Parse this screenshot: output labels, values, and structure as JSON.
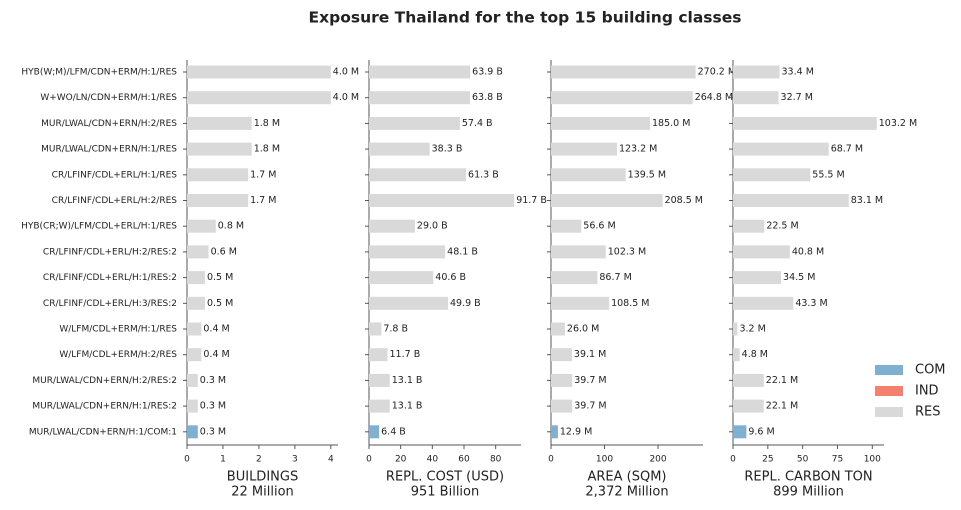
{
  "chart_data": [
    {
      "type": "bar",
      "orientation": "horizontal",
      "title": "Exposure Thailand for the top 15 building classes",
      "legend": "right",
      "categories": [
        "HYB(W;M)/LFM/CDN+ERM/H:1/RES",
        "W+WO/LN/CDN+ERM/H:1/RES",
        "MUR/LWAL/CDN+ERN/H:2/RES",
        "MUR/LWAL/CDN+ERN/H:1/RES",
        "CR/LFINF/CDL+ERL/H:1/RES",
        "CR/LFINF/CDL+ERL/H:2/RES",
        "HYB(CR;W)/LFM/CDL+ERL/H:1/RES",
        "CR/LFINF/CDL+ERL/H:2/RES:2",
        "CR/LFINF/CDL+ERL/H:1/RES:2",
        "CR/LFINF/CDL+ERL/H:3/RES:2",
        "W/LFM/CDL+ERM/H:1/RES",
        "W/LFM/CDL+ERM/H:2/RES",
        "MUR/LWAL/CDN+ERN/H:2/RES:2",
        "MUR/LWAL/CDN+ERN/H:1/RES:2",
        "MUR/LWAL/CDN+ERN/H:1/COM:1"
      ],
      "xlabel": [
        "BUILDINGS",
        "22 Million"
      ],
      "xlim": [
        0,
        4.2
      ],
      "xticks": [
        0,
        1,
        2,
        3,
        4
      ],
      "series": [
        {
          "name": "COM",
          "color": "#7fb0d2",
          "values": [
            null,
            null,
            null,
            null,
            null,
            null,
            null,
            null,
            null,
            null,
            null,
            null,
            null,
            null,
            0.3
          ],
          "value_labels": [
            null,
            null,
            null,
            null,
            null,
            null,
            null,
            null,
            null,
            null,
            null,
            null,
            null,
            null,
            "0.3 M"
          ]
        },
        {
          "name": "IND",
          "color": "#f4806f",
          "values": [
            null,
            null,
            null,
            null,
            null,
            null,
            null,
            null,
            null,
            null,
            null,
            null,
            null,
            null,
            null
          ],
          "value_labels": [
            null,
            null,
            null,
            null,
            null,
            null,
            null,
            null,
            null,
            null,
            null,
            null,
            null,
            null,
            null
          ]
        },
        {
          "name": "RES",
          "color": "#d9d9d9",
          "values": [
            4.0,
            4.0,
            1.8,
            1.8,
            1.7,
            1.7,
            0.8,
            0.6,
            0.5,
            0.5,
            0.4,
            0.4,
            0.3,
            0.3,
            null
          ],
          "value_labels": [
            "4.0 M",
            "4.0 M",
            "1.8 M",
            "1.8 M",
            "1.7 M",
            "1.7 M",
            "0.8 M",
            "0.6 M",
            "0.5 M",
            "0.5 M",
            "0.4 M",
            "0.4 M",
            "0.3 M",
            "0.3 M",
            null
          ]
        }
      ]
    },
    {
      "type": "bar",
      "orientation": "horizontal",
      "xlabel": [
        "REPL. COST (USD)",
        "951 Billion"
      ],
      "xlim": [
        0,
        96
      ],
      "xticks": [
        0,
        20,
        40,
        60,
        80
      ],
      "series": [
        {
          "name": "COM",
          "color": "#7fb0d2",
          "values": [
            null,
            null,
            null,
            null,
            null,
            null,
            null,
            null,
            null,
            null,
            null,
            null,
            null,
            null,
            6.4
          ],
          "value_labels": [
            null,
            null,
            null,
            null,
            null,
            null,
            null,
            null,
            null,
            null,
            null,
            null,
            null,
            null,
            "6.4 B"
          ]
        },
        {
          "name": "IND",
          "color": "#f4806f",
          "values": [
            null,
            null,
            null,
            null,
            null,
            null,
            null,
            null,
            null,
            null,
            null,
            null,
            null,
            null,
            null
          ],
          "value_labels": [
            null,
            null,
            null,
            null,
            null,
            null,
            null,
            null,
            null,
            null,
            null,
            null,
            null,
            null,
            null
          ]
        },
        {
          "name": "RES",
          "color": "#d9d9d9",
          "values": [
            63.9,
            63.8,
            57.4,
            38.3,
            61.3,
            91.7,
            29.0,
            48.1,
            40.6,
            49.9,
            7.8,
            11.7,
            13.1,
            13.1,
            null
          ],
          "value_labels": [
            "63.9 B",
            "63.8 B",
            "57.4 B",
            "38.3 B",
            "61.3 B",
            "91.7 B",
            "29.0 B",
            "48.1 B",
            "40.6 B",
            "49.9 B",
            "7.8 B",
            "11.7 B",
            "13.1 B",
            "13.1 B",
            null
          ]
        }
      ]
    },
    {
      "type": "bar",
      "orientation": "horizontal",
      "xlabel": [
        "AREA (SQM)",
        "2,372 Million"
      ],
      "xlim": [
        0,
        284
      ],
      "xticks": [
        0,
        100,
        200
      ],
      "series": [
        {
          "name": "COM",
          "color": "#7fb0d2",
          "values": [
            null,
            null,
            null,
            null,
            null,
            null,
            null,
            null,
            null,
            null,
            null,
            null,
            null,
            null,
            12.9
          ],
          "value_labels": [
            null,
            null,
            null,
            null,
            null,
            null,
            null,
            null,
            null,
            null,
            null,
            null,
            null,
            null,
            "12.9 M"
          ]
        },
        {
          "name": "IND",
          "color": "#f4806f",
          "values": [
            null,
            null,
            null,
            null,
            null,
            null,
            null,
            null,
            null,
            null,
            null,
            null,
            null,
            null,
            null
          ],
          "value_labels": [
            null,
            null,
            null,
            null,
            null,
            null,
            null,
            null,
            null,
            null,
            null,
            null,
            null,
            null,
            null
          ]
        },
        {
          "name": "RES",
          "color": "#d9d9d9",
          "values": [
            270.2,
            264.8,
            185.0,
            123.2,
            139.5,
            208.5,
            56.6,
            102.3,
            86.7,
            108.5,
            26.0,
            39.1,
            39.7,
            39.7,
            null
          ],
          "value_labels": [
            "270.2 M",
            "264.8 M",
            "185.0 M",
            "123.2 M",
            "139.5 M",
            "208.5 M",
            "56.6 M",
            "102.3 M",
            "86.7 M",
            "108.5 M",
            "26.0 M",
            "39.1 M",
            "39.7 M",
            "39.7 M",
            null
          ]
        }
      ]
    },
    {
      "type": "bar",
      "orientation": "horizontal",
      "xlabel": [
        "REPL. CARBON TON",
        "899 Million"
      ],
      "xlim": [
        0,
        108.4
      ],
      "xticks": [
        0,
        25,
        50,
        75,
        100
      ],
      "series": [
        {
          "name": "COM",
          "color": "#7fb0d2",
          "values": [
            null,
            null,
            null,
            null,
            null,
            null,
            null,
            null,
            null,
            null,
            null,
            null,
            null,
            null,
            9.6
          ],
          "value_labels": [
            null,
            null,
            null,
            null,
            null,
            null,
            null,
            null,
            null,
            null,
            null,
            null,
            null,
            null,
            "9.6 M"
          ]
        },
        {
          "name": "IND",
          "color": "#f4806f",
          "values": [
            null,
            null,
            null,
            null,
            null,
            null,
            null,
            null,
            null,
            null,
            null,
            null,
            null,
            null,
            null
          ],
          "value_labels": [
            null,
            null,
            null,
            null,
            null,
            null,
            null,
            null,
            null,
            null,
            null,
            null,
            null,
            null,
            null
          ]
        },
        {
          "name": "RES",
          "color": "#d9d9d9",
          "values": [
            33.4,
            32.7,
            103.2,
            68.7,
            55.5,
            83.1,
            22.5,
            40.8,
            34.5,
            43.3,
            3.2,
            4.8,
            22.1,
            22.1,
            null
          ],
          "value_labels": [
            "33.4 M",
            "32.7 M",
            "103.2 M",
            "68.7 M",
            "55.5 M",
            "83.1 M",
            "22.5 M",
            "40.8 M",
            "34.5 M",
            "43.3 M",
            "3.2 M",
            "4.8 M",
            "22.1 M",
            "22.1 M",
            null
          ]
        }
      ]
    }
  ]
}
